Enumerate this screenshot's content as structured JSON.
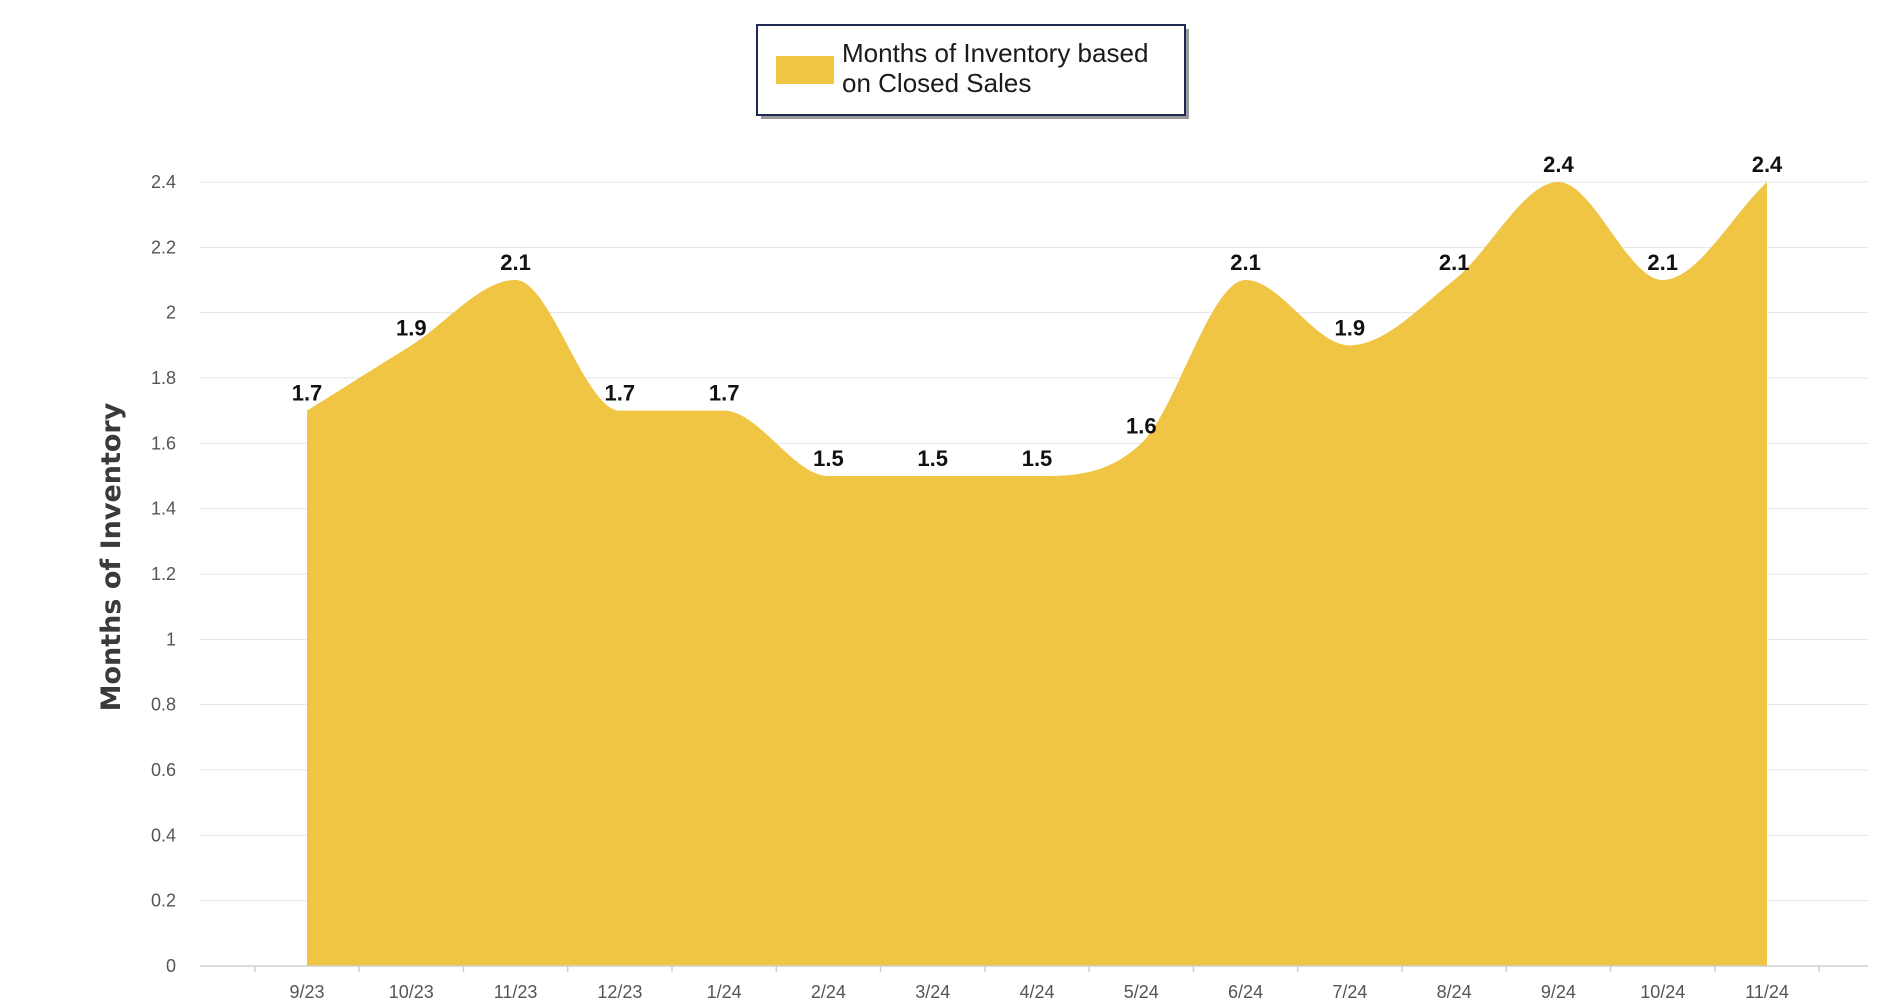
{
  "chart_data": {
    "type": "area",
    "categories": [
      "9/23",
      "10/23",
      "11/23",
      "12/23",
      "1/24",
      "2/24",
      "3/24",
      "4/24",
      "5/24",
      "6/24",
      "7/24",
      "8/24",
      "9/24",
      "10/24",
      "11/24"
    ],
    "series": [
      {
        "name": "Months of Inventory based on Closed Sales",
        "values": [
          1.7,
          1.9,
          2.1,
          1.7,
          1.7,
          1.5,
          1.5,
          1.5,
          1.6,
          2.1,
          1.9,
          2.1,
          2.4,
          2.1,
          2.4
        ],
        "color": "#f0c543"
      }
    ],
    "legend": {
      "lines": [
        "Months of Inventory based",
        "on Closed Sales"
      ],
      "position": "top-center"
    },
    "ylabel": "Months of Inventory",
    "xlabel": "",
    "ylim": [
      0,
      2.4
    ],
    "yticks": [
      "0",
      "0.2",
      "0.4",
      "0.6",
      "0.8",
      "1",
      "1.2",
      "1.4",
      "1.6",
      "1.8",
      "2",
      "2.2",
      "2.4"
    ],
    "data_labels": [
      "1.7",
      "1.9",
      "2.1",
      "1.7",
      "1.7",
      "1.5",
      "1.5",
      "1.5",
      "1.6",
      "2.1",
      "1.9",
      "2.1",
      "2.4",
      "2.1",
      "2.4"
    ],
    "grid": true
  }
}
